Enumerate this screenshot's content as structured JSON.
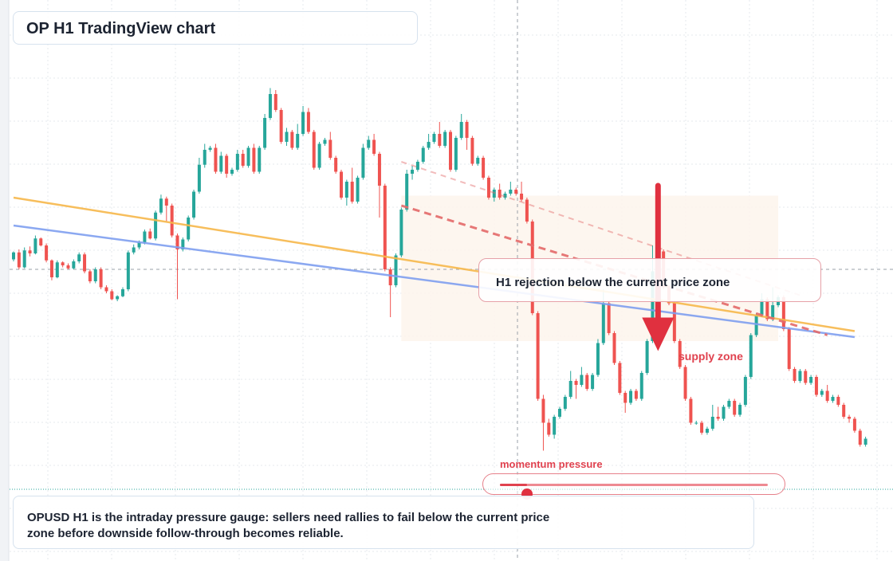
{
  "title": "OP H1 TradingView chart",
  "callout": "H1 rejection below the current price zone",
  "supply_label": "supply zone",
  "momentum_label": "momentum pressure",
  "gauge": {
    "level": 0.1
  },
  "note": "OPUSD H1 is the intraday pressure gauge: sellers need rallies to fail below the current price zone before downside follow-through becomes reliable.",
  "colors": {
    "bull": "#26a69a",
    "bear": "#ef5350",
    "wick": "#5a5f6a",
    "orange_trend": "#f7b84b",
    "blue_trend": "#7f9ff0",
    "resistance_dash": "#e46a6a",
    "accent": "#e0303f",
    "supply_zone": "#fdf4ec"
  },
  "icons": [
    "down-arrow-icon"
  ],
  "chart_data": {
    "type": "candlestick",
    "timeframe": "H1",
    "symbol": "OPUSD",
    "candles": [
      [
        0.5,
        0.85,
        0.4,
        0.9
      ],
      [
        0.85,
        0.1,
        0.0,
        1.0
      ],
      [
        0.1,
        0.95,
        0.05,
        1.1
      ],
      [
        0.95,
        0.8,
        0.65,
        1.15
      ],
      [
        0.8,
        1.55,
        0.75,
        1.7
      ],
      [
        1.55,
        1.2,
        1.15,
        1.6
      ],
      [
        1.2,
        0.45,
        0.35,
        1.3
      ],
      [
        0.45,
        -0.4,
        -0.55,
        0.5
      ],
      [
        -0.4,
        0.35,
        -0.45,
        0.45
      ],
      [
        0.35,
        0.2,
        0.1,
        0.4
      ],
      [
        0.2,
        0.05,
        0.0,
        0.3
      ],
      [
        0.05,
        0.4,
        0.0,
        0.5
      ],
      [
        0.4,
        0.75,
        0.3,
        0.85
      ],
      [
        0.75,
        -0.1,
        -0.2,
        0.85
      ],
      [
        -0.1,
        -0.6,
        -0.7,
        0.0
      ],
      [
        -0.6,
        0.0,
        -0.7,
        0.1
      ],
      [
        0.0,
        -0.9,
        -1.0,
        0.1
      ],
      [
        -0.9,
        -1.1,
        -1.2,
        -0.8
      ],
      [
        -1.1,
        -1.5,
        -1.55,
        -1.0
      ],
      [
        -1.5,
        -1.35,
        -1.6,
        -1.3
      ],
      [
        -1.35,
        -1.0,
        -1.4,
        -0.9
      ],
      [
        -1.0,
        0.85,
        -1.1,
        0.95
      ],
      [
        0.85,
        1.1,
        0.75,
        1.25
      ],
      [
        1.1,
        1.35,
        1.0,
        1.45
      ],
      [
        1.35,
        1.9,
        1.25,
        2.0
      ],
      [
        1.9,
        1.55,
        1.5,
        2.05
      ],
      [
        1.55,
        2.85,
        1.45,
        2.95
      ],
      [
        2.85,
        3.55,
        2.75,
        3.75
      ],
      [
        3.55,
        3.2,
        2.4,
        3.65
      ],
      [
        3.2,
        1.7,
        1.6,
        3.3
      ],
      [
        1.7,
        1.0,
        -1.5,
        1.8
      ],
      [
        1.0,
        1.5,
        0.9,
        1.6
      ],
      [
        1.5,
        2.6,
        1.4,
        2.7
      ],
      [
        2.6,
        3.9,
        2.5,
        4.0
      ],
      [
        3.9,
        5.25,
        3.8,
        5.6
      ],
      [
        5.25,
        6.0,
        5.1,
        6.3
      ],
      [
        6.0,
        6.1,
        5.9,
        6.2
      ],
      [
        6.1,
        4.9,
        4.8,
        6.3
      ],
      [
        4.9,
        5.7,
        4.8,
        5.9
      ],
      [
        5.7,
        4.8,
        4.6,
        5.8
      ],
      [
        4.8,
        5.0,
        4.7,
        5.1
      ],
      [
        5.0,
        5.8,
        4.9,
        6.0
      ],
      [
        5.8,
        5.2,
        5.1,
        6.0
      ],
      [
        5.2,
        6.1,
        5.1,
        6.2
      ],
      [
        6.1,
        4.9,
        4.8,
        6.3
      ],
      [
        4.9,
        6.1,
        4.8,
        6.2
      ],
      [
        6.1,
        7.6,
        6.0,
        7.8
      ],
      [
        7.6,
        8.8,
        7.5,
        9.1
      ],
      [
        8.8,
        8.0,
        7.9,
        9.0
      ],
      [
        8.0,
        6.4,
        6.3,
        8.1
      ],
      [
        6.4,
        6.9,
        6.2,
        7.1
      ],
      [
        6.9,
        6.1,
        6.0,
        7.0
      ],
      [
        6.1,
        6.8,
        6.0,
        7.3
      ],
      [
        6.8,
        7.9,
        6.7,
        8.2
      ],
      [
        7.9,
        6.9,
        6.8,
        8.1
      ],
      [
        6.9,
        5.1,
        5.0,
        7.0
      ],
      [
        5.1,
        6.3,
        5.0,
        6.4
      ],
      [
        6.3,
        6.5,
        6.2,
        6.6
      ],
      [
        6.5,
        5.6,
        5.5,
        6.9
      ],
      [
        5.6,
        4.9,
        4.8,
        5.7
      ],
      [
        4.9,
        3.6,
        3.5,
        5.0
      ],
      [
        3.6,
        4.4,
        3.2,
        4.5
      ],
      [
        4.4,
        3.4,
        3.3,
        5.1
      ],
      [
        3.4,
        4.6,
        3.3,
        4.7
      ],
      [
        4.6,
        6.1,
        4.5,
        6.3
      ],
      [
        6.1,
        6.5,
        6.0,
        6.7
      ],
      [
        6.5,
        5.8,
        5.7,
        6.8
      ],
      [
        5.8,
        4.2,
        2.6,
        5.9
      ],
      [
        4.2,
        0.0,
        -0.1,
        4.3
      ],
      [
        0.0,
        -0.8,
        -2.4,
        0.1
      ],
      [
        -0.8,
        0.7,
        -0.9,
        0.8
      ],
      [
        0.7,
        3.0,
        0.6,
        3.1
      ],
      [
        3.0,
        4.8,
        2.9,
        5.0
      ],
      [
        4.8,
        5.0,
        4.5,
        5.2
      ],
      [
        5.0,
        5.4,
        4.9,
        5.5
      ],
      [
        5.4,
        6.1,
        5.3,
        6.2
      ],
      [
        6.1,
        6.4,
        6.0,
        6.8
      ],
      [
        6.4,
        6.8,
        6.3,
        6.9
      ],
      [
        6.8,
        6.2,
        6.1,
        7.4
      ],
      [
        6.2,
        6.9,
        6.1,
        7.0
      ],
      [
        6.9,
        5.0,
        4.9,
        7.0
      ],
      [
        5.0,
        6.6,
        4.9,
        6.7
      ],
      [
        6.6,
        7.4,
        6.5,
        7.8
      ],
      [
        7.4,
        6.6,
        6.0,
        7.5
      ],
      [
        6.6,
        5.3,
        5.2,
        6.7
      ],
      [
        5.3,
        5.6,
        5.2,
        5.7
      ],
      [
        5.6,
        4.6,
        4.5,
        5.7
      ],
      [
        4.6,
        3.6,
        3.5,
        4.7
      ],
      [
        3.6,
        4.0,
        3.4,
        4.1
      ],
      [
        4.0,
        3.6,
        3.5,
        4.3
      ],
      [
        3.6,
        3.8,
        3.5,
        3.9
      ],
      [
        3.8,
        4.0,
        3.7,
        4.4
      ],
      [
        4.0,
        3.8,
        3.7,
        4.1
      ],
      [
        3.8,
        3.5,
        3.4,
        4.4
      ],
      [
        3.5,
        2.4,
        2.3,
        3.6
      ],
      [
        2.4,
        -2.2,
        -2.3,
        2.5
      ],
      [
        -2.2,
        -6.5,
        -6.6,
        -2.1
      ],
      [
        -6.5,
        -7.7,
        -9.1,
        -6.3
      ],
      [
        -7.7,
        -8.3,
        -8.4,
        -7.5
      ],
      [
        -8.3,
        -7.4,
        -8.5,
        -7.3
      ],
      [
        -7.4,
        -7.0,
        -7.5,
        -6.9
      ],
      [
        -7.0,
        -6.4,
        -7.1,
        -6.3
      ],
      [
        -6.4,
        -5.6,
        -6.5,
        -5.1
      ],
      [
        -5.6,
        -5.8,
        -6.5,
        -5.5
      ],
      [
        -5.8,
        -5.3,
        -5.9,
        -4.9
      ],
      [
        -5.3,
        -6.0,
        -6.1,
        -5.2
      ],
      [
        -6.0,
        -5.3,
        -6.1,
        -5.2
      ],
      [
        -5.3,
        -3.7,
        -5.4,
        -3.5
      ],
      [
        -3.7,
        -1.7,
        -3.8,
        -1.0
      ],
      [
        -1.7,
        -3.2,
        -3.3,
        -1.6
      ],
      [
        -3.2,
        -4.7,
        -4.8,
        -3.1
      ],
      [
        -4.7,
        -6.2,
        -6.3,
        -4.6
      ],
      [
        -6.2,
        -6.7,
        -7.2,
        -6.1
      ],
      [
        -6.7,
        -6.1,
        -6.8,
        -6.0
      ],
      [
        -6.1,
        -6.5,
        -6.6,
        -6.0
      ],
      [
        -6.5,
        -5.2,
        -6.6,
        -5.1
      ],
      [
        -5.2,
        -3.6,
        -5.3,
        -3.5
      ],
      [
        -3.6,
        -0.1,
        -3.7,
        1.2
      ],
      [
        -0.1,
        0.9,
        -0.2,
        2.7
      ],
      [
        0.9,
        -0.9,
        -1.0,
        1.0
      ],
      [
        -0.9,
        -1.7,
        -1.8,
        -0.8
      ],
      [
        -1.7,
        -3.6,
        -3.7,
        -1.6
      ],
      [
        -3.6,
        -4.9,
        -5.0,
        -3.5
      ],
      [
        -4.9,
        -6.5,
        -6.6,
        -4.8
      ],
      [
        -6.5,
        -7.7,
        -7.8,
        -6.4
      ],
      [
        -7.7,
        -7.7,
        -7.8,
        -7.6
      ],
      [
        -7.7,
        -8.2,
        -8.3,
        -7.6
      ],
      [
        -8.2,
        -8.0,
        -8.3,
        -7.9
      ],
      [
        -8.0,
        -7.4,
        -8.1,
        -6.8
      ],
      [
        -7.4,
        -7.5,
        -7.6,
        -6.9
      ],
      [
        -7.5,
        -6.9,
        -7.6,
        -6.8
      ],
      [
        -6.9,
        -6.6,
        -7.0,
        -6.5
      ],
      [
        -6.6,
        -7.3,
        -7.4,
        -6.5
      ],
      [
        -7.3,
        -6.8,
        -7.4,
        -6.7
      ],
      [
        -6.8,
        -5.4,
        -6.9,
        -5.3
      ],
      [
        -5.4,
        -3.3,
        -5.5,
        -3.2
      ],
      [
        -3.3,
        -2.3,
        -3.4,
        -2.2
      ],
      [
        -2.3,
        -1.5,
        -2.4,
        -1.2
      ],
      [
        -1.5,
        -2.5,
        -2.6,
        -1.4
      ],
      [
        -2.5,
        -1.8,
        -2.6,
        -0.9
      ],
      [
        -1.8,
        -1.4,
        -1.9,
        -1.3
      ],
      [
        -1.4,
        -3.0,
        -3.1,
        -1.3
      ],
      [
        -3.0,
        -5.0,
        -5.1,
        -2.9
      ],
      [
        -5.0,
        -5.6,
        -5.7,
        -4.9
      ],
      [
        -5.6,
        -5.1,
        -5.7,
        -5.0
      ],
      [
        -5.1,
        -5.7,
        -5.8,
        -5.0
      ],
      [
        -5.7,
        -5.4,
        -5.8,
        -5.3
      ],
      [
        -5.4,
        -6.3,
        -6.4,
        -5.3
      ],
      [
        -6.3,
        -6.1,
        -6.4,
        -6.0
      ],
      [
        -6.1,
        -6.6,
        -6.7,
        -5.8
      ],
      [
        -6.6,
        -6.4,
        -6.7,
        -6.3
      ],
      [
        -6.4,
        -6.8,
        -6.9,
        -6.3
      ],
      [
        -6.8,
        -7.4,
        -7.5,
        -6.7
      ],
      [
        -7.4,
        -7.5,
        -7.7,
        -7.3
      ],
      [
        -7.5,
        -8.1,
        -8.2,
        -7.4
      ],
      [
        -8.1,
        -8.8,
        -8.9,
        -8.0
      ],
      [
        -8.8,
        -8.5,
        -8.9,
        -8.4
      ]
    ],
    "current_price_level": 0.0,
    "trendlines": [
      {
        "name": "orange",
        "color": "#f7b84b",
        "from": [
          0,
          3.6
        ],
        "to": [
          154,
          -3.1
        ]
      },
      {
        "name": "blue",
        "color": "#7f9ff0",
        "from": [
          0,
          2.2
        ],
        "to": [
          154,
          -3.4
        ]
      }
    ],
    "resistance_dashed": [
      {
        "color": "#e46a6a",
        "opacity": 0.9,
        "from": [
          71,
          3.2
        ],
        "to": [
          149,
          -3.3
        ]
      },
      {
        "color": "#e46a6a",
        "opacity": 0.45,
        "from": [
          71,
          5.4
        ],
        "to": [
          144,
          -1.3
        ]
      }
    ],
    "supply_zone": {
      "x_from": 71,
      "x_to": 140,
      "y_from": 3.7,
      "y_to": -3.6
    },
    "arrow": {
      "x": 118,
      "from_y": 4.2,
      "to_y": -4.1,
      "direction": "down"
    },
    "grid": true
  }
}
